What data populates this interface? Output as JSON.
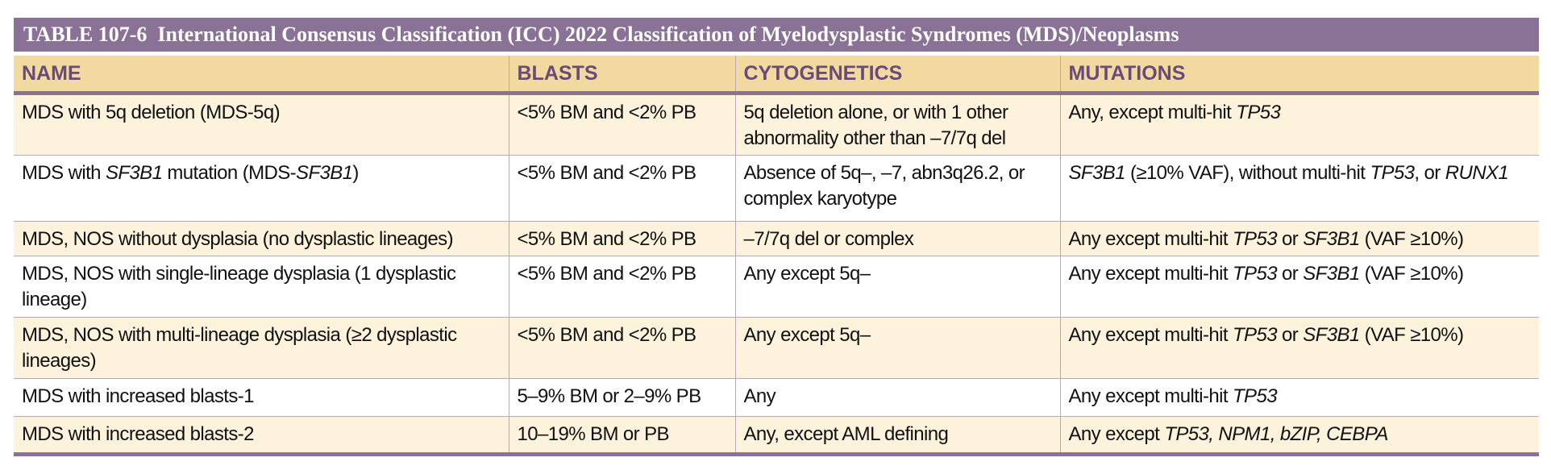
{
  "header": {
    "title": "TABLE 107-6  International Consensus Classification (ICC) 2022 Classification of Myelodysplastic Syndromes (MDS)/Neoplasms"
  },
  "table": {
    "columns": [
      "NAME",
      "BLASTS",
      "CYTOGENETICS",
      "MUTATIONS"
    ],
    "rows": [
      [
        [
          "MDS with 5q deletion (MDS-5q)"
        ],
        [
          "<5% BM and <2% PB"
        ],
        [
          "5q deletion alone, or with 1 other abnormality other than –7/7q del"
        ],
        [
          "Any, except multi-hit ",
          {
            "italic": "TP53"
          }
        ]
      ],
      [
        [
          "MDS with ",
          {
            "italic": "SF3B1"
          },
          " mutation (MDS-",
          {
            "italic": "SF3B1"
          },
          ")"
        ],
        [
          "<5% BM and <2% PB"
        ],
        [
          "Absence of 5q–, –7, abn3q26.2, or complex karyotype"
        ],
        [
          {
            "italic": "SF3B1"
          },
          " (≥10% VAF), without multi-hit ",
          {
            "italic": "TP53"
          },
          ", or ",
          {
            "italic": "RUNX1"
          }
        ]
      ],
      [
        [
          "MDS, NOS without dysplasia (no dysplastic lineages)"
        ],
        [
          "<5% BM and <2% PB"
        ],
        [
          "–7/7q del or complex"
        ],
        [
          "Any except multi-hit ",
          {
            "italic": "TP53"
          },
          " or ",
          {
            "italic": "SF3B1"
          },
          " (VAF ≥10%)"
        ]
      ],
      [
        [
          "MDS, NOS with single-lineage dysplasia (1 dysplastic lineage)"
        ],
        [
          "<5% BM and <2% PB"
        ],
        [
          "Any except 5q–"
        ],
        [
          "Any except multi-hit ",
          {
            "italic": "TP53"
          },
          " or ",
          {
            "italic": "SF3B1"
          },
          " (VAF ≥10%)"
        ]
      ],
      [
        [
          "MDS, NOS with multi-lineage dysplasia (≥2 dysplastic lineages)"
        ],
        [
          "<5% BM and <2% PB"
        ],
        [
          "Any except 5q–"
        ],
        [
          "Any except multi-hit ",
          {
            "italic": "TP53"
          },
          " or ",
          {
            "italic": "SF3B1"
          },
          " (VAF ≥10%)"
        ]
      ],
      [
        [
          "MDS with increased blasts-1"
        ],
        [
          "5–9% BM or 2–9% PB"
        ],
        [
          "Any"
        ],
        [
          "Any except multi-hit ",
          {
            "italic": "TP53"
          }
        ]
      ],
      [
        [
          "MDS with increased blasts-2"
        ],
        [
          "10–19% BM or PB"
        ],
        [
          "Any, except AML defining"
        ],
        [
          "Any except ",
          {
            "italic": "TP53, NPM1, bZIP, CEBPA"
          }
        ]
      ]
    ]
  }
}
